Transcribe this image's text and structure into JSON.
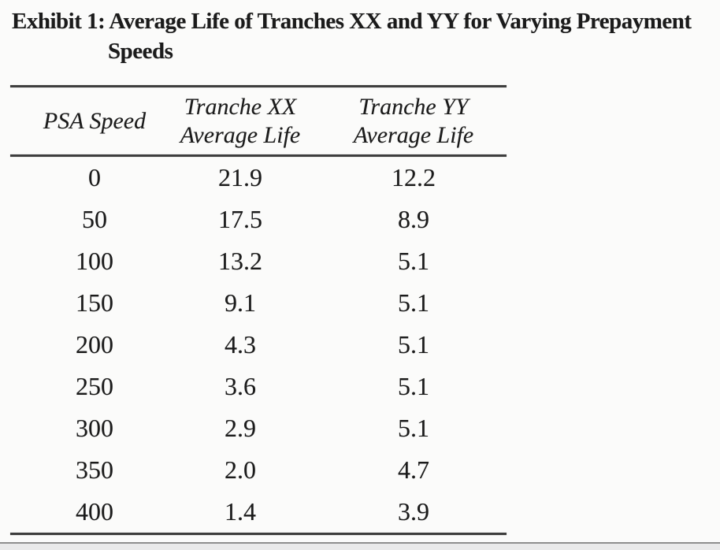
{
  "title": {
    "line1": "Exhibit 1: Average Life of Tranches XX and YY for Varying Prepayment",
    "line2": "Speeds"
  },
  "table": {
    "columns": [
      {
        "line1": "PSA Speed",
        "line2": ""
      },
      {
        "line1": "Tranche XX",
        "line2": "Average Life"
      },
      {
        "line1": "Tranche YY",
        "line2": "Average Life"
      }
    ],
    "rows": [
      {
        "psa": "0",
        "xx": "21.9",
        "yy": "12.2"
      },
      {
        "psa": "50",
        "xx": "17.5",
        "yy": "8.9"
      },
      {
        "psa": "100",
        "xx": "13.2",
        "yy": "5.1"
      },
      {
        "psa": "150",
        "xx": "9.1",
        "yy": "5.1"
      },
      {
        "psa": "200",
        "xx": "4.3",
        "yy": "5.1"
      },
      {
        "psa": "250",
        "xx": "3.6",
        "yy": "5.1"
      },
      {
        "psa": "300",
        "xx": "2.9",
        "yy": "5.1"
      },
      {
        "psa": "350",
        "xx": "2.0",
        "yy": "4.7"
      },
      {
        "psa": "400",
        "xx": "1.4",
        "yy": "3.9"
      }
    ]
  },
  "chart_data": {
    "type": "table",
    "title": "Exhibit 1: Average Life of Tranches XX and YY for Varying Prepayment Speeds",
    "columns": [
      "PSA Speed",
      "Tranche XX Average Life",
      "Tranche YY Average Life"
    ],
    "psa_speeds": [
      0,
      50,
      100,
      150,
      200,
      250,
      300,
      350,
      400
    ],
    "tranche_xx_average_life": [
      21.9,
      17.5,
      13.2,
      9.1,
      4.3,
      3.6,
      2.9,
      2.0,
      1.4
    ],
    "tranche_yy_average_life": [
      12.2,
      8.9,
      5.1,
      5.1,
      5.1,
      5.1,
      5.1,
      4.7,
      3.9
    ],
    "colors": {
      "text": "#1b1b1b",
      "rule": "#3e3e3e",
      "background": "#fbfbfa"
    }
  }
}
